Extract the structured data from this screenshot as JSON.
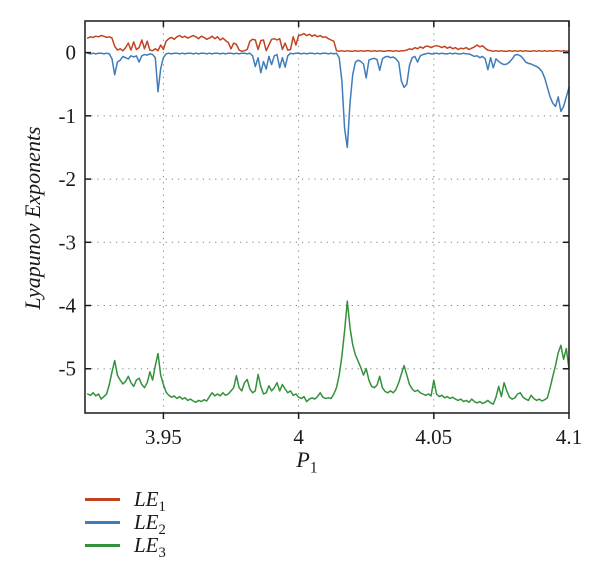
{
  "chart_data": {
    "type": "line",
    "title": "",
    "xlabel": "P1",
    "xlabel_display": {
      "main": "P",
      "sub": "1"
    },
    "ylabel": "Lyapunov Exponents",
    "xlim": [
      3.921,
      4.1
    ],
    "ylim": [
      -5.7,
      0.5
    ],
    "xticks": {
      "values": [
        3.95,
        4.0,
        4.05,
        4.1
      ],
      "labels": [
        "3.95",
        "4",
        "4.05",
        "4.1"
      ]
    },
    "yticks": {
      "values": [
        0,
        -1,
        -2,
        -3,
        -4,
        -5
      ],
      "labels": [
        "0",
        "-1",
        "-2",
        "-3",
        "-4",
        "-5"
      ]
    },
    "grid": "dotted",
    "grid_color": "#7f7f7f",
    "axis_color": "#1a1a1a",
    "legend_position": "bottom-left",
    "x_start": 3.922,
    "x_step": 0.001,
    "series": [
      {
        "name": "LE1",
        "label_main": "LE",
        "label_sub": "1",
        "color": "#c2431f",
        "y": [
          0.23,
          0.25,
          0.24,
          0.26,
          0.25,
          0.27,
          0.26,
          0.24,
          0.25,
          0.23,
          0.1,
          0.04,
          0.06,
          0.03,
          0.08,
          0.15,
          0.04,
          0.17,
          0.05,
          0.08,
          0.2,
          0.06,
          0.18,
          0.04,
          0.03,
          0.06,
          0.03,
          0.12,
          0.05,
          0.18,
          0.22,
          0.24,
          0.21,
          0.25,
          0.27,
          0.24,
          0.26,
          0.23,
          0.25,
          0.27,
          0.25,
          0.22,
          0.26,
          0.24,
          0.21,
          0.23,
          0.26,
          0.22,
          0.25,
          0.2,
          0.23,
          0.19,
          0.16,
          0.06,
          0.15,
          0.13,
          0.04,
          0.02,
          0.03,
          0.05,
          0.18,
          0.21,
          0.2,
          0.05,
          0.19,
          0.2,
          0.03,
          0.12,
          0.21,
          0.22,
          0.2,
          0.22,
          0.05,
          0.15,
          0.04,
          0.05,
          0.25,
          0.12,
          0.27,
          0.28,
          0.3,
          0.27,
          0.29,
          0.26,
          0.28,
          0.25,
          0.27,
          0.24,
          0.25,
          0.22,
          0.2,
          0.18,
          0.03,
          0.02,
          0.03,
          0.02,
          0.03,
          0.02,
          0.02,
          0.03,
          0.02,
          0.03,
          0.02,
          0.03,
          0.03,
          0.02,
          0.03,
          0.02,
          0.03,
          0.02,
          0.02,
          0.03,
          0.03,
          0.02,
          0.03,
          0.02,
          0.03,
          0.03,
          0.04,
          0.06,
          0.05,
          0.08,
          0.06,
          0.09,
          0.07,
          0.1,
          0.1,
          0.08,
          0.1,
          0.11,
          0.1,
          0.08,
          0.1,
          0.07,
          0.09,
          0.06,
          0.08,
          0.05,
          0.07,
          0.06,
          0.08,
          0.05,
          0.07,
          0.09,
          0.12,
          0.09,
          0.11,
          0.07,
          0.04,
          0.03,
          0.02,
          0.03,
          0.02,
          0.03,
          0.02,
          0.02,
          0.03,
          0.02,
          0.03,
          0.02,
          0.03,
          0.02,
          0.03,
          0.02,
          0.02,
          0.03,
          0.02,
          0.03,
          0.02,
          0.03,
          0.02,
          0.03,
          0.02,
          0.03,
          0.03,
          0.02,
          0.03,
          0.02,
          0.03
        ]
      },
      {
        "name": "LE2",
        "label_main": "LE",
        "label_sub": "2",
        "color": "#3f7cba",
        "y": [
          -0.01,
          -0.02,
          -0.01,
          -0.02,
          -0.01,
          -0.01,
          -0.02,
          -0.01,
          -0.02,
          -0.1,
          -0.35,
          -0.15,
          -0.12,
          -0.06,
          -0.08,
          -0.1,
          -0.05,
          -0.07,
          -0.05,
          -0.15,
          -0.05,
          -0.03,
          -0.04,
          -0.02,
          -0.03,
          -0.08,
          -0.62,
          -0.25,
          -0.08,
          -0.02,
          -0.01,
          -0.02,
          -0.01,
          -0.01,
          -0.02,
          -0.01,
          -0.02,
          -0.01,
          -0.01,
          -0.02,
          -0.01,
          -0.02,
          -0.01,
          -0.01,
          -0.02,
          -0.01,
          -0.02,
          -0.01,
          -0.01,
          -0.02,
          -0.01,
          -0.02,
          -0.01,
          -0.01,
          -0.02,
          -0.01,
          -0.02,
          -0.01,
          -0.01,
          -0.02,
          -0.01,
          -0.05,
          -0.22,
          -0.08,
          -0.32,
          -0.14,
          -0.26,
          -0.06,
          -0.19,
          -0.05,
          -0.03,
          -0.24,
          -0.08,
          -0.23,
          -0.05,
          -0.01,
          -0.02,
          -0.01,
          -0.01,
          -0.02,
          -0.01,
          -0.02,
          -0.01,
          -0.01,
          -0.02,
          -0.01,
          -0.02,
          -0.01,
          -0.01,
          -0.02,
          -0.01,
          -0.02,
          -0.01,
          -0.08,
          -0.45,
          -1.2,
          -1.5,
          -0.8,
          -0.35,
          -0.15,
          -0.12,
          -0.14,
          -0.18,
          -0.4,
          -0.12,
          -0.1,
          -0.09,
          -0.11,
          -0.28,
          -0.1,
          -0.07,
          -0.06,
          -0.08,
          -0.07,
          -0.1,
          -0.15,
          -0.45,
          -0.55,
          -0.5,
          -0.2,
          -0.08,
          -0.06,
          -0.15,
          -0.05,
          -0.03,
          -0.02,
          -0.01,
          -0.02,
          -0.02,
          -0.01,
          -0.02,
          -0.01,
          -0.02,
          -0.02,
          -0.01,
          -0.02,
          -0.01,
          -0.02,
          -0.02,
          -0.01,
          -0.02,
          -0.02,
          -0.04,
          -0.06,
          -0.05,
          -0.08,
          -0.06,
          -0.1,
          -0.27,
          -0.08,
          -0.24,
          -0.1,
          -0.14,
          -0.17,
          -0.19,
          -0.18,
          -0.15,
          -0.1,
          -0.04,
          -0.03,
          -0.05,
          -0.09,
          -0.15,
          -0.17,
          -0.18,
          -0.2,
          -0.22,
          -0.25,
          -0.3,
          -0.4,
          -0.55,
          -0.7,
          -0.8,
          -0.85,
          -0.7,
          -0.93,
          -0.85,
          -0.7,
          -0.55
        ]
      },
      {
        "name": "LE3",
        "label_main": "LE",
        "label_sub": "3",
        "color": "#33913c",
        "y": [
          -5.4,
          -5.42,
          -5.38,
          -5.43,
          -5.4,
          -5.48,
          -5.44,
          -5.4,
          -5.25,
          -5.05,
          -4.87,
          -5.1,
          -5.18,
          -5.24,
          -5.2,
          -5.12,
          -5.22,
          -5.28,
          -5.18,
          -5.15,
          -5.25,
          -5.3,
          -5.22,
          -5.05,
          -5.18,
          -4.95,
          -4.76,
          -5.1,
          -5.25,
          -5.37,
          -5.42,
          -5.45,
          -5.43,
          -5.47,
          -5.44,
          -5.48,
          -5.46,
          -5.5,
          -5.48,
          -5.51,
          -5.53,
          -5.5,
          -5.52,
          -5.49,
          -5.51,
          -5.44,
          -5.38,
          -5.43,
          -5.4,
          -5.43,
          -5.38,
          -5.42,
          -5.4,
          -5.35,
          -5.3,
          -5.11,
          -5.3,
          -5.35,
          -5.22,
          -5.17,
          -5.32,
          -5.38,
          -5.35,
          -5.09,
          -5.28,
          -5.4,
          -5.38,
          -5.27,
          -5.35,
          -5.3,
          -5.22,
          -5.35,
          -5.25,
          -5.32,
          -5.38,
          -5.35,
          -5.42,
          -5.4,
          -5.45,
          -5.47,
          -5.44,
          -5.52,
          -5.48,
          -5.46,
          -5.48,
          -5.44,
          -5.38,
          -5.45,
          -5.47,
          -5.46,
          -5.47,
          -5.4,
          -5.3,
          -5.1,
          -4.8,
          -4.4,
          -3.93,
          -4.35,
          -4.62,
          -4.78,
          -4.88,
          -4.98,
          -5.1,
          -5.0,
          -5.18,
          -5.28,
          -5.3,
          -5.26,
          -5.12,
          -5.3,
          -5.36,
          -5.38,
          -5.35,
          -5.38,
          -5.33,
          -5.22,
          -5.08,
          -4.95,
          -5.1,
          -5.25,
          -5.32,
          -5.36,
          -5.34,
          -5.38,
          -5.4,
          -5.42,
          -5.4,
          -5.43,
          -5.18,
          -5.4,
          -5.44,
          -5.42,
          -5.46,
          -5.44,
          -5.47,
          -5.45,
          -5.48,
          -5.5,
          -5.48,
          -5.52,
          -5.5,
          -5.53,
          -5.48,
          -5.52,
          -5.54,
          -5.52,
          -5.55,
          -5.53,
          -5.5,
          -5.54,
          -5.56,
          -5.45,
          -5.28,
          -5.44,
          -5.22,
          -5.35,
          -5.45,
          -5.48,
          -5.46,
          -5.4,
          -5.38,
          -5.45,
          -5.48,
          -5.5,
          -5.42,
          -5.47,
          -5.5,
          -5.48,
          -5.51,
          -5.49,
          -5.46,
          -5.3,
          -5.12,
          -4.95,
          -4.75,
          -4.63,
          -4.85,
          -4.68,
          -5.0
        ]
      }
    ]
  }
}
